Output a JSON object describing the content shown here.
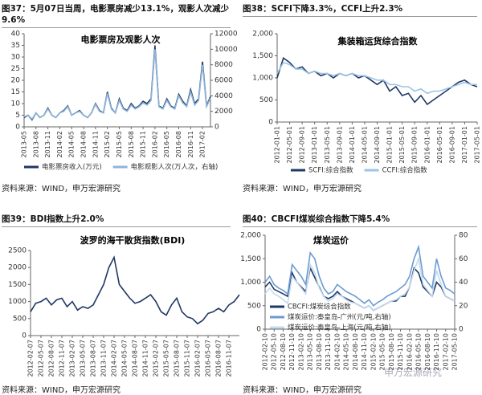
{
  "chart_data": [
    {
      "type": "line",
      "caption": "图37：5月07日当周，电影票房减少13.1%，观影人次减少9.6%",
      "title": "电影票房及观影人次",
      "source": "资料来源：WIND，申万宏源研究",
      "legend": "bottom",
      "categories": [
        "2013-05",
        null,
        null,
        "2013-08",
        null,
        null,
        "2013-11",
        null,
        null,
        "2014-02",
        null,
        null,
        "2014-05",
        null,
        null,
        "2014-08",
        null,
        null,
        "2014-11",
        null,
        null,
        "2015-02",
        null,
        null,
        "2015-05",
        null,
        null,
        "2015-08",
        null,
        null,
        "2015-11",
        null,
        null,
        "2016-02",
        null,
        null,
        "2016-05",
        null,
        null,
        "2016-08",
        null,
        null,
        "2016-11",
        null,
        null,
        "2017-02",
        null,
        null
      ],
      "series": [
        {
          "name": "电影票房收入(万元)",
          "color": "#1f3864",
          "values": [
            4,
            5,
            3,
            6,
            4,
            5,
            8,
            5,
            4,
            6,
            7,
            9,
            5,
            6,
            7,
            5,
            4,
            6,
            10,
            7,
            6,
            15,
            8,
            6,
            12,
            8,
            7,
            10,
            8,
            9,
            11,
            10,
            12,
            35,
            9,
            8,
            12,
            9,
            8,
            14,
            11,
            9,
            16,
            10,
            12,
            28,
            9,
            13
          ]
        },
        {
          "name": "电影观影人次(万人次，右轴)",
          "color": "#8fb4dc",
          "axis": "y2",
          "values": [
            1300,
            1500,
            1000,
            1800,
            1200,
            1500,
            2300,
            1500,
            1200,
            1800,
            2000,
            2600,
            1500,
            1800,
            2000,
            1500,
            1200,
            1800,
            2900,
            2000,
            1800,
            4300,
            2300,
            1800,
            3400,
            2300,
            2000,
            2800,
            2300,
            2600,
            3100,
            2800,
            3400,
            10000,
            2600,
            2300,
            3400,
            2600,
            2300,
            4000,
            3100,
            2600,
            4500,
            2800,
            3400,
            8000,
            2600,
            3700
          ]
        }
      ],
      "ylim": [
        0,
        40
      ],
      "yticks": [
        0,
        5,
        10,
        15,
        20,
        25,
        30,
        35,
        40
      ],
      "y2lim": [
        0,
        12000
      ],
      "y2ticks": [
        0,
        2000,
        4000,
        6000,
        8000,
        10000,
        12000
      ]
    },
    {
      "type": "line",
      "caption": "图38：SCFI下降3.3%，CCFI上升2.3%",
      "title": "集装箱运货综合指数",
      "source": "资料来源：WIND，申万宏源研究",
      "legend": "bottom",
      "categories": [
        "2012-01-01",
        null,
        "2012-05-01",
        null,
        "2012-09-01",
        null,
        "2013-01-01",
        null,
        "2013-05-01",
        null,
        "2013-09-01",
        null,
        "2014-01-01",
        null,
        "2014-05-01",
        null,
        "2014-09-01",
        null,
        "2015-01-01",
        null,
        "2015-05-01",
        null,
        "2015-09-01",
        null,
        "2016-01-01",
        null,
        "2016-05-01",
        null,
        "2016-09-01",
        null,
        "2017-01-01",
        null,
        "2017-05-01"
      ],
      "series": [
        {
          "name": "SCFI:综合指数",
          "color": "#1f3864",
          "values": [
            1000,
            1450,
            1350,
            1200,
            1250,
            1100,
            1150,
            1050,
            1100,
            1000,
            1100,
            1050,
            1100,
            1000,
            1050,
            950,
            850,
            950,
            700,
            800,
            600,
            650,
            450,
            600,
            400,
            500,
            600,
            700,
            800,
            900,
            950,
            850,
            800
          ]
        },
        {
          "name": "CCFI:综合指数",
          "color": "#9dc3e6",
          "values": [
            1100,
            1350,
            1300,
            1200,
            1200,
            1100,
            1150,
            1100,
            1100,
            1050,
            1100,
            1050,
            1100,
            1050,
            1050,
            1000,
            950,
            950,
            850,
            850,
            800,
            800,
            700,
            750,
            650,
            700,
            700,
            750,
            800,
            850,
            900,
            850,
            850
          ]
        }
      ],
      "ylim": [
        0,
        2000
      ],
      "yticks": [
        0,
        500,
        {
          "value": 1000,
          "label": "1,000"
        },
        {
          "value": 1500,
          "label": "1,500"
        },
        {
          "value": 2000,
          "label": "2,000"
        }
      ]
    },
    {
      "type": "line",
      "caption": "图39：BDI指数上升2.0%",
      "title": "波罗的海干散货指数(BDI)",
      "source": "资料来源：WIND，申万宏源研究",
      "categories": [
        "2012-02-07",
        null,
        "2012-05-07",
        null,
        "2012-08-07",
        null,
        "2012-11-07",
        null,
        "2013-02-07",
        null,
        "2013-05-07",
        null,
        "2013-08-07",
        null,
        "2013-11-07",
        null,
        "2014-02-07",
        null,
        "2014-05-07",
        null,
        "2014-08-07",
        null,
        "2014-11-07",
        null,
        "2015-02-07",
        null,
        "2015-05-07",
        null,
        "2015-08-07",
        null,
        "2015-11-07",
        null,
        "2016-02-07",
        null,
        "2016-05-07",
        null,
        "2016-08-07",
        null,
        "2016-11-07",
        null,
        null
      ],
      "color": "#1f3864",
      "values": [
        700,
        950,
        1000,
        1100,
        900,
        1050,
        1100,
        850,
        1000,
        750,
        850,
        800,
        900,
        1200,
        1500,
        2000,
        2300,
        1500,
        1300,
        1100,
        950,
        1000,
        1100,
        1200,
        1000,
        700,
        600,
        900,
        1100,
        700,
        550,
        500,
        350,
        450,
        650,
        700,
        800,
        700,
        900,
        1000,
        1200
      ],
      "ylim": [
        0,
        2500
      ],
      "yticks": [
        0,
        500,
        1000,
        1500,
        2000,
        2500
      ]
    },
    {
      "type": "line",
      "caption": "图40：CBCFI煤炭综合指数下降5.4%",
      "title": "煤炭运价",
      "source": "资料来源：WIND，申万宏源研究",
      "legend": "lower left",
      "categories": [
        "2012-02-10",
        null,
        "2012-05-10",
        null,
        "2012-08-10",
        null,
        "2012-11-10",
        null,
        "2013-02-10",
        null,
        "2013-05-10",
        null,
        "2013-08-10",
        null,
        "2013-11-10",
        null,
        "2014-02-10",
        null,
        "2014-05-10",
        null,
        "2014-08-10",
        null,
        "2014-11-10",
        null,
        "2015-02-10",
        null,
        "2015-05-10",
        null,
        "2015-08-10",
        null,
        "2015-11-10",
        null,
        "2016-02-10",
        null,
        "2016-05-10",
        null,
        "2016-08-10",
        null,
        "2016-11-10",
        null,
        "2017-02-10",
        null,
        "2017-05-10"
      ],
      "series": [
        {
          "name": "CBCFI:煤炭综合指数",
          "color": "#1f3864",
          "values": [
            900,
            1000,
            850,
            800,
            750,
            700,
            1200,
            1000,
            900,
            800,
            1300,
            1100,
            900,
            700,
            650,
            700,
            800,
            700,
            650,
            600,
            550,
            500,
            450,
            500,
            400,
            450,
            500,
            550,
            600,
            600,
            700,
            700,
            900,
            1300,
            1200,
            900,
            800,
            700,
            1000,
            900,
            700,
            650,
            600
          ]
        },
        {
          "name": "煤炭运价:秦皇岛-广州(元/吨,右轴)",
          "color": "#6b9bd1",
          "axis": "y2",
          "values": [
            40,
            45,
            38,
            35,
            33,
            30,
            55,
            50,
            45,
            38,
            65,
            60,
            45,
            35,
            30,
            32,
            38,
            35,
            32,
            30,
            28,
            25,
            22,
            25,
            20,
            23,
            25,
            28,
            30,
            32,
            35,
            38,
            45,
            60,
            70,
            45,
            40,
            35,
            60,
            45,
            35,
            33,
            30
          ]
        },
        {
          "name": "煤炭运价:秦皇岛-上海(元/吨,右轴)",
          "color": "#c5daf0",
          "axis": "y2",
          "values": [
            30,
            35,
            30,
            28,
            25,
            22,
            45,
            40,
            35,
            30,
            55,
            48,
            35,
            28,
            24,
            26,
            30,
            28,
            25,
            23,
            22,
            20,
            18,
            20,
            16,
            18,
            20,
            22,
            24,
            25,
            28,
            30,
            36,
            50,
            60,
            38,
            33,
            28,
            50,
            38,
            28,
            26,
            24
          ]
        }
      ],
      "ylim": [
        0,
        2000
      ],
      "yticks": [
        0,
        500,
        {
          "value": 1000,
          "label": "1,000"
        },
        {
          "value": 1500,
          "label": "1,500"
        },
        {
          "value": 2000,
          "label": "2,000"
        }
      ],
      "y2lim": [
        0,
        80
      ],
      "y2ticks": [
        0,
        20,
        40,
        60,
        80
      ]
    }
  ],
  "watermark": "申万宏源研究"
}
